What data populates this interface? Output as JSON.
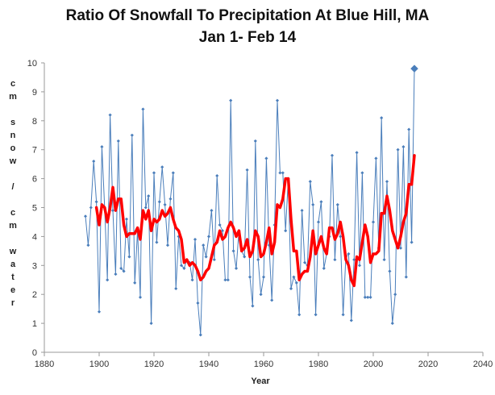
{
  "title_line1": "Ratio Of Snowfall To Precipitation At Blue Hill, MA",
  "title_line2": "Jan 1- Feb 14",
  "ylabel_lines": [
    "c",
    "m",
    "",
    "s",
    "n",
    "o",
    "w",
    "",
    "/",
    "",
    "c",
    "m",
    "",
    "w",
    "a",
    "t",
    "e",
    "r"
  ],
  "colors": {
    "series": "#4a7ebb",
    "moving_avg": "#ff0000",
    "axis": "#9a9a9a",
    "grid": "#e6e6e6"
  },
  "chart_data": {
    "type": "line",
    "title": "Ratio Of Snowfall To Precipitation At Blue Hill, MA Jan 1- Feb 14",
    "xlabel": "Year",
    "ylabel": "cm snow / cm water",
    "xlim": [
      1880,
      2040
    ],
    "ylim": [
      0,
      10
    ],
    "xticks": [
      1880,
      1900,
      1920,
      1940,
      1960,
      1980,
      2000,
      2020,
      2040
    ],
    "yticks": [
      0,
      1,
      2,
      3,
      4,
      5,
      6,
      7,
      8,
      9,
      10
    ],
    "grid": false,
    "legend": "none",
    "series": [
      {
        "x": [
          1895,
          1896,
          1897,
          1898,
          1899,
          1900,
          1901,
          1902,
          1903,
          1904,
          1905,
          1906,
          1907,
          1908,
          1909,
          1910,
          1911,
          1912,
          1913,
          1914,
          1915,
          1916,
          1917,
          1918,
          1919,
          1920,
          1921,
          1922,
          1923,
          1924,
          1925,
          1926,
          1927,
          1928,
          1929,
          1930,
          1931,
          1932,
          1933,
          1934,
          1935,
          1936,
          1937,
          1938,
          1939,
          1940,
          1941,
          1942,
          1943,
          1944,
          1945,
          1946,
          1947,
          1948,
          1949,
          1950,
          1951,
          1952,
          1953,
          1954,
          1955,
          1956,
          1957,
          1958,
          1959,
          1960,
          1961,
          1962,
          1963,
          1964,
          1965,
          1966,
          1967,
          1968,
          1969,
          1970,
          1971,
          1972,
          1973,
          1974,
          1975,
          1976,
          1977,
          1978,
          1979,
          1980,
          1981,
          1982,
          1983,
          1984,
          1985,
          1986,
          1987,
          1988,
          1989,
          1990,
          1991,
          1992,
          1993,
          1994,
          1995,
          1996,
          1997,
          1998,
          1999,
          2000,
          2001,
          2002,
          2003,
          2004,
          2005,
          2006,
          2007,
          2008,
          2009,
          2010,
          2011,
          2012,
          2013,
          2014,
          2015
        ],
        "y": [
          4.7,
          3.7,
          5.0,
          6.6,
          5.2,
          1.4,
          7.1,
          5.0,
          2.5,
          8.2,
          4.9,
          2.7,
          7.3,
          2.9,
          2.8,
          4.6,
          3.3,
          7.5,
          2.4,
          4.2,
          1.9,
          8.4,
          5.0,
          5.4,
          1.0,
          6.2,
          3.8,
          5.2,
          6.4,
          5.1,
          3.7,
          5.3,
          6.2,
          2.2,
          4.0,
          3.0,
          2.9,
          3.2,
          3.1,
          2.5,
          3.9,
          1.7,
          0.6,
          3.7,
          3.3,
          4.0,
          4.9,
          3.2,
          6.1,
          4.4,
          4.2,
          2.5,
          2.5,
          8.7,
          3.5,
          2.9,
          4.2,
          3.5,
          3.3,
          6.3,
          2.6,
          1.6,
          7.3,
          3.2,
          2.0,
          2.6,
          6.7,
          3.7,
          1.8,
          4.4,
          8.7,
          6.2,
          6.2,
          4.2,
          6.0,
          2.2,
          2.6,
          2.4,
          1.3,
          4.9,
          3.1,
          3.0,
          5.9,
          5.1,
          1.3,
          4.5,
          5.2,
          2.9,
          3.4,
          4.0,
          6.8,
          3.2,
          5.1,
          4.0,
          1.3,
          3.3,
          3.4,
          1.1,
          3.2,
          6.9,
          3.0,
          6.2,
          1.9,
          1.9,
          1.9,
          4.5,
          6.7,
          3.6,
          8.1,
          3.2,
          5.9,
          2.8,
          1.0,
          2.0,
          7.0,
          3.6,
          7.1,
          2.6,
          7.7,
          3.8,
          9.8
        ]
      },
      {
        "x": [
          1899,
          1900,
          1901,
          1902,
          1903,
          1904,
          1905,
          1906,
          1907,
          1908,
          1909,
          1910,
          1911,
          1912,
          1913,
          1914,
          1915,
          1916,
          1917,
          1918,
          1919,
          1920,
          1921,
          1922,
          1923,
          1924,
          1925,
          1926,
          1927,
          1928,
          1929,
          1930,
          1931,
          1932,
          1933,
          1934,
          1935,
          1936,
          1937,
          1938,
          1939,
          1940,
          1941,
          1942,
          1943,
          1944,
          1945,
          1946,
          1947,
          1948,
          1949,
          1950,
          1951,
          1952,
          1953,
          1954,
          1955,
          1956,
          1957,
          1958,
          1959,
          1960,
          1961,
          1962,
          1963,
          1964,
          1965,
          1966,
          1967,
          1968,
          1969,
          1970,
          1971,
          1972,
          1973,
          1974,
          1975,
          1976,
          1977,
          1978,
          1979,
          1980,
          1981,
          1982,
          1983,
          1984,
          1985,
          1986,
          1987,
          1988,
          1989,
          1990,
          1991,
          1992,
          1993,
          1994,
          1995,
          1996,
          1997,
          1998,
          1999,
          2000,
          2001,
          2002,
          2003,
          2004,
          2005,
          2006,
          2007,
          2008,
          2009,
          2010,
          2011,
          2012,
          2013,
          2014,
          2015
        ],
        "y": [
          5.0,
          4.4,
          5.1,
          5.0,
          4.5,
          5.0,
          5.7,
          4.9,
          5.3,
          5.3,
          4.4,
          4.0,
          4.1,
          4.1,
          4.1,
          4.3,
          3.9,
          4.9,
          4.6,
          4.9,
          4.2,
          4.6,
          4.5,
          4.6,
          4.9,
          4.7,
          4.8,
          5.0,
          4.6,
          4.3,
          4.2,
          3.9,
          3.1,
          3.2,
          3.0,
          3.1,
          3.0,
          2.8,
          2.5,
          2.6,
          2.8,
          2.9,
          3.3,
          3.7,
          3.8,
          4.2,
          3.9,
          4.0,
          4.3,
          4.5,
          4.3,
          4.0,
          4.2,
          3.5,
          3.6,
          3.9,
          3.3,
          3.5,
          4.2,
          4.0,
          3.3,
          3.4,
          3.8,
          4.3,
          3.4,
          3.8,
          5.1,
          5.0,
          5.3,
          6.0,
          6.0,
          4.6,
          3.5,
          3.5,
          2.5,
          2.7,
          2.8,
          2.8,
          3.3,
          4.2,
          3.4,
          3.7,
          4.0,
          3.6,
          3.4,
          4.3,
          4.3,
          3.9,
          4.1,
          4.5,
          4.0,
          3.2,
          3.0,
          2.5,
          2.3,
          3.3,
          3.2,
          3.8,
          4.4,
          4.0,
          3.1,
          3.4,
          3.4,
          3.5,
          4.8,
          4.8,
          5.4,
          4.9,
          4.2,
          3.9,
          3.6,
          4.0,
          4.5,
          4.8,
          5.8,
          5.8,
          6.8
        ]
      }
    ]
  }
}
